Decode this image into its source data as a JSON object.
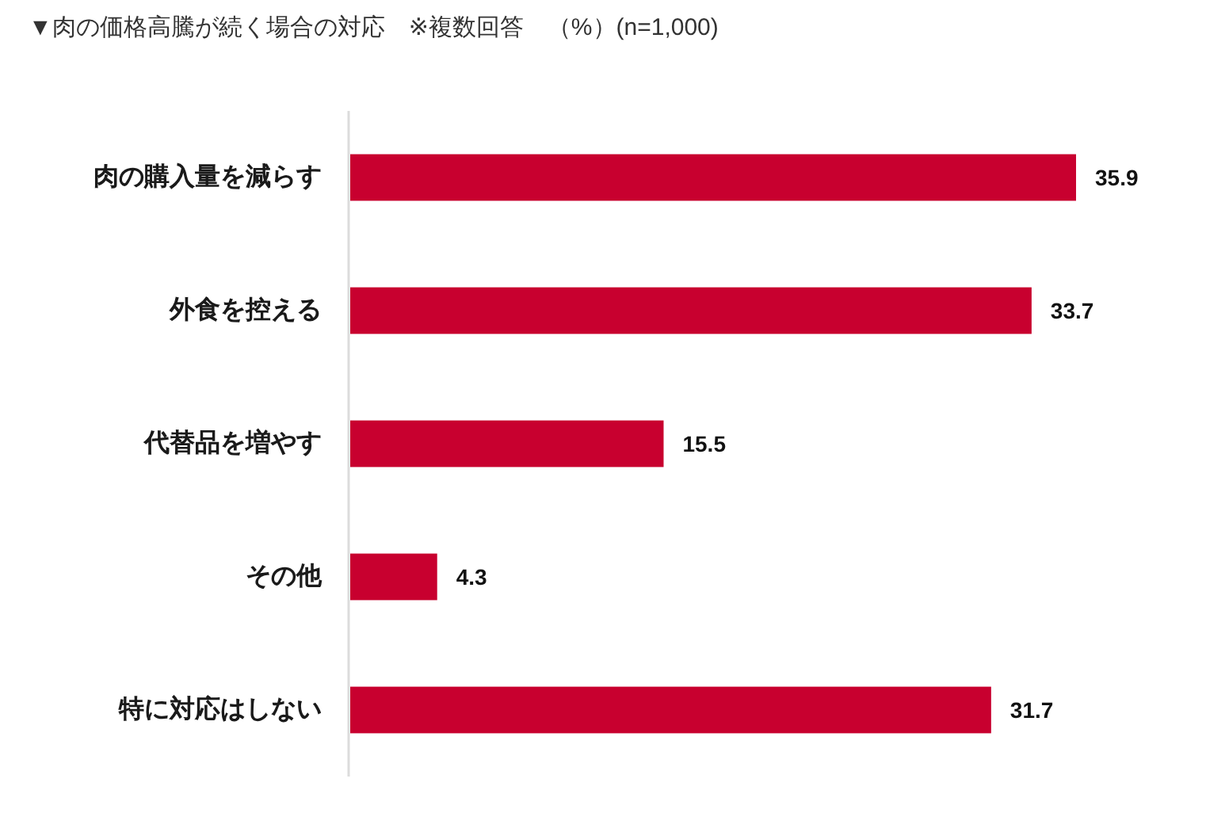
{
  "chart_data": {
    "type": "bar",
    "orientation": "horizontal",
    "title": "▼肉の価格高騰が続く場合の対応　※複数回答　（%）(n=1,000)",
    "categories": [
      "肉の購入量を減らす",
      "外食を控える",
      "代替品を増やす",
      "その他",
      "特に対応はしない"
    ],
    "values": [
      35.9,
      33.7,
      15.5,
      4.3,
      31.7
    ],
    "color": "#c8002f",
    "data_labels": true
  }
}
